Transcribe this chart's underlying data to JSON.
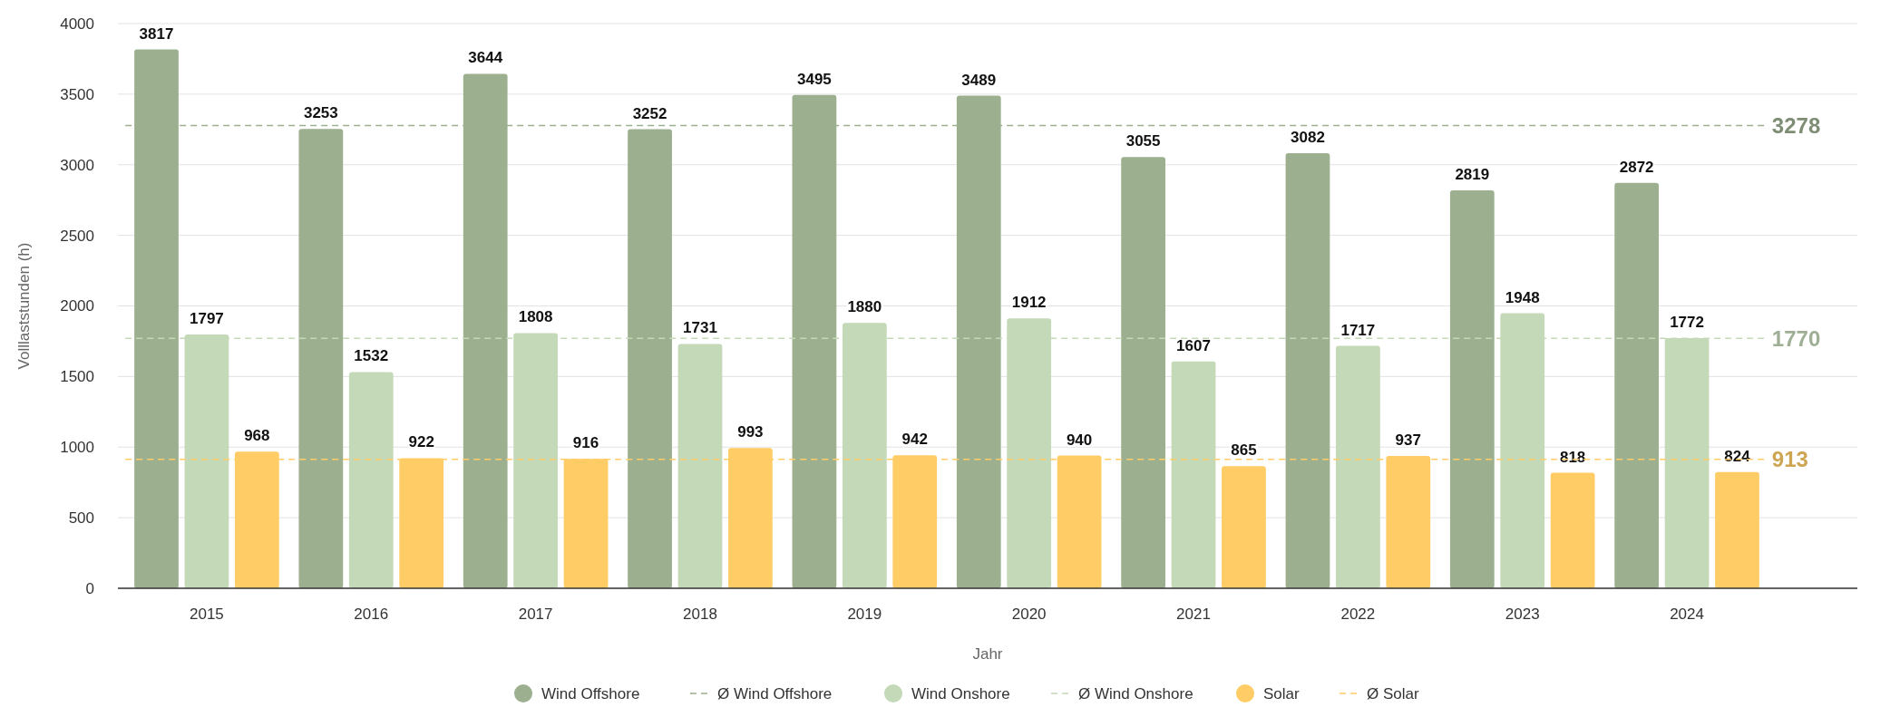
{
  "chart_data": {
    "type": "bar",
    "xlabel": "Jahr",
    "ylabel": "Volllaststunden (h)",
    "categories": [
      "2015",
      "2016",
      "2017",
      "2018",
      "2019",
      "2020",
      "2021",
      "2022",
      "2023",
      "2024"
    ],
    "series": [
      {
        "name": "Wind Offshore",
        "color": "#9caf8f",
        "values": [
          3817,
          3253,
          3644,
          3252,
          3495,
          3489,
          3055,
          3082,
          2819,
          2872
        ]
      },
      {
        "name": "Wind Onshore",
        "color": "#c4d9b8",
        "values": [
          1797,
          1532,
          1808,
          1731,
          1880,
          1912,
          1607,
          1717,
          1948,
          1772
        ]
      },
      {
        "name": "Solar",
        "color": "#ffcc66",
        "values": [
          968,
          922,
          916,
          993,
          942,
          940,
          865,
          937,
          818,
          824
        ]
      }
    ],
    "ref_lines": [
      {
        "axis": "y",
        "value": 3278,
        "label": "Ø Wind Offshore",
        "color": "#9caf8f",
        "line_style": "dashed"
      },
      {
        "axis": "y",
        "value": 1770,
        "label": "Ø Wind Onshore",
        "color": "#c4d9b8",
        "line_style": "dashed"
      },
      {
        "axis": "y",
        "value": 913,
        "label": "Ø Solar",
        "color": "#ffcc66",
        "line_style": "dashed"
      }
    ],
    "ylim": [
      0,
      4000
    ],
    "yticks": [
      0,
      500,
      1000,
      1500,
      2000,
      2500,
      3000,
      3500,
      4000
    ],
    "annotations": [
      "3278",
      "1770",
      "913"
    ],
    "grid": "y",
    "legend": "bottom",
    "data_labels": true
  }
}
